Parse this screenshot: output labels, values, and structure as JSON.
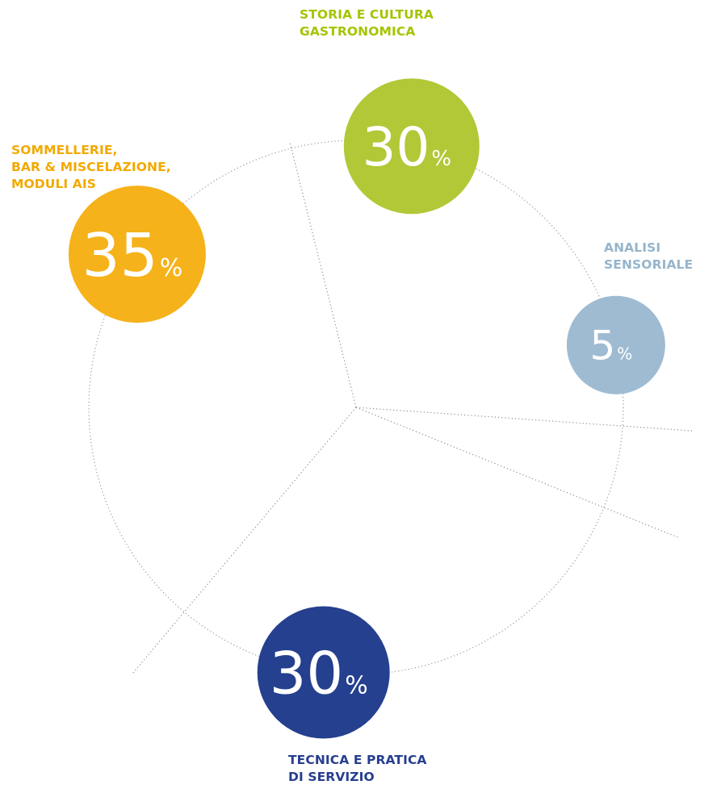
{
  "chart_data": {
    "type": "pie",
    "categories": [
      "STORIA E CULTURA GASTRONOMICA",
      "ANALISI SENSORIALE",
      "TECNICA E PRATICA DI SERVIZIO",
      "SOMMELLERIE, BAR & MISCELAZIONE, MODULI AIS"
    ],
    "values": [
      30,
      5,
      30,
      35
    ],
    "value_text": [
      "30",
      "5",
      "30",
      "35"
    ],
    "unit": "%",
    "colors": [
      "#b2c837",
      "#9ebbd2",
      "#24408e",
      "#f6b21a"
    ],
    "label_lines": [
      [
        "STORIA E CULTURA",
        "GASTRONOMICA"
      ],
      [
        "ANALISI",
        "SENSORIALE"
      ],
      [
        "TECNICA E PRATICA",
        "DI SERVIZIO"
      ],
      [
        "SOMMELLERIE,",
        "BAR & MISCELAZIONE,",
        "MODULI AIS"
      ]
    ],
    "label_colors": [
      "#a5c400",
      "#96b5cc",
      "#273e8e",
      "#f2a900"
    ]
  }
}
